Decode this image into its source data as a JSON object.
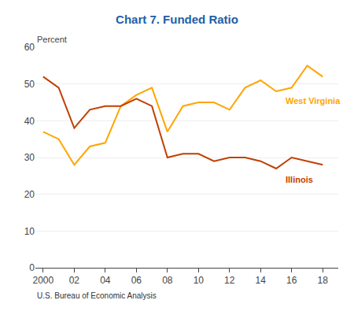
{
  "chart_data": {
    "type": "line",
    "title": "Chart 7. Funded Ratio",
    "title_color": "#1F5FA6",
    "ylabel": "Percent",
    "caption": "U.S. Bureau of Economic Analysis",
    "x": [
      2000,
      2001,
      2002,
      2003,
      2004,
      2005,
      2006,
      2007,
      2008,
      2009,
      2010,
      2011,
      2012,
      2013,
      2014,
      2015,
      2016,
      2017,
      2018
    ],
    "series": [
      {
        "name": "West Virginia",
        "color": "#FFA500",
        "values": [
          37,
          35,
          28,
          33,
          34,
          44,
          47,
          49,
          37,
          44,
          45,
          45,
          43,
          49,
          51,
          48,
          49,
          55,
          52
        ]
      },
      {
        "name": "Illinois",
        "color": "#C04000",
        "values": [
          52,
          49,
          38,
          43,
          44,
          44,
          46,
          44,
          30,
          31,
          31,
          29,
          30,
          30,
          29,
          27,
          30,
          29,
          28
        ]
      }
    ],
    "annotations": [
      {
        "text": "West Virginia",
        "x": 2015.5,
        "y": 45.5,
        "color": "#FFA500"
      },
      {
        "text": "Illinois",
        "x": 2015.5,
        "y": 24.0,
        "color": "#C04000"
      }
    ],
    "xlim": [
      1999.5,
      2019.0
    ],
    "xticks": [
      2000,
      {
        "value": 2002,
        "label": "02"
      },
      {
        "value": 2004,
        "label": "04"
      },
      {
        "value": 2006,
        "label": "06"
      },
      {
        "value": 2008,
        "label": "08"
      },
      {
        "value": 2010,
        "label": "10"
      },
      {
        "value": 2012,
        "label": "12"
      },
      {
        "value": 2014,
        "label": "14"
      },
      {
        "value": 2016,
        "label": "16"
      },
      {
        "value": 2018,
        "label": "18"
      }
    ],
    "ylim": [
      0,
      60
    ],
    "yticks": [
      0,
      10,
      20,
      30,
      40,
      50,
      60
    ],
    "grid": true
  }
}
